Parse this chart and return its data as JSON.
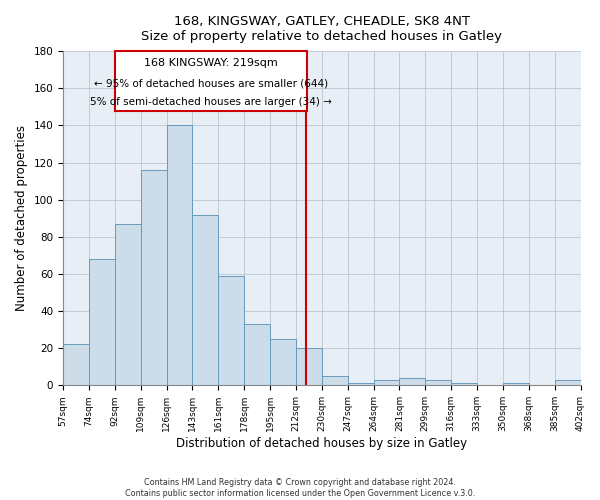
{
  "title": "168, KINGSWAY, GATLEY, CHEADLE, SK8 4NT",
  "subtitle": "Size of property relative to detached houses in Gatley",
  "xlabel": "Distribution of detached houses by size in Gatley",
  "ylabel": "Number of detached properties",
  "bin_labels": [
    "57sqm",
    "74sqm",
    "92sqm",
    "109sqm",
    "126sqm",
    "143sqm",
    "161sqm",
    "178sqm",
    "195sqm",
    "212sqm",
    "230sqm",
    "247sqm",
    "264sqm",
    "281sqm",
    "299sqm",
    "316sqm",
    "333sqm",
    "350sqm",
    "368sqm",
    "385sqm",
    "402sqm"
  ],
  "bar_heights": [
    22,
    68,
    87,
    116,
    140,
    92,
    59,
    33,
    25,
    20,
    5,
    1,
    3,
    4,
    3,
    1,
    0,
    1,
    0,
    3
  ],
  "bar_color": "#ccdce8",
  "bar_edge_color": "#6699bb",
  "vline_color": "#cc0000",
  "annotation_title": "168 KINGSWAY: 219sqm",
  "annotation_line1": "← 95% of detached houses are smaller (644)",
  "annotation_line2": "5% of semi-detached houses are larger (34) →",
  "annotation_box_color": "#ffffff",
  "annotation_box_edge": "#cc0000",
  "ylim": [
    0,
    180
  ],
  "yticks": [
    0,
    20,
    40,
    60,
    80,
    100,
    120,
    140,
    160,
    180
  ],
  "footnote1": "Contains HM Land Registry data © Crown copyright and database right 2024.",
  "footnote2": "Contains public sector information licensed under the Open Government Licence v.3.0."
}
